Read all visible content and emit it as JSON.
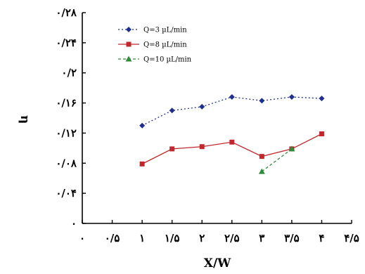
{
  "chart_data": {
    "type": "line",
    "title": "",
    "xlabel": "X/W",
    "ylabel": "η",
    "xlim": [
      0,
      4.5
    ],
    "ylim": [
      0,
      0.28
    ],
    "x_ticks": [
      0,
      0.5,
      1,
      1.5,
      2,
      2.5,
      3,
      3.5,
      4,
      4.5
    ],
    "x_tick_labels": [
      "۰",
      "۰/۵",
      "۱",
      "۱/۵",
      "۲",
      "۲/۵",
      "۳",
      "۳/۵",
      "۴",
      "۴/۵"
    ],
    "y_ticks": [
      0,
      0.04,
      0.08,
      0.12,
      0.16,
      0.2,
      0.24,
      0.28
    ],
    "y_tick_labels": [
      "۰",
      "۰/۰۴",
      "۰/۰۸",
      "۰/۱۲",
      "۰/۱۶",
      "۰/۲",
      "۰/۲۴",
      "۰/۲۸"
    ],
    "grid": false,
    "legend_position": "top-left",
    "series": [
      {
        "name": "Q=3 µL/min",
        "color": "#1f2f8a",
        "marker": "diamond",
        "line": "dotted",
        "x": [
          1,
          1.5,
          2,
          2.5,
          3,
          3.5,
          4
        ],
        "y": [
          0.13,
          0.15,
          0.155,
          0.168,
          0.163,
          0.168,
          0.166
        ]
      },
      {
        "name": "Q=8 µL/min",
        "color": "#c0282d",
        "marker": "square",
        "line": "solid",
        "x": [
          1,
          1.5,
          2,
          2.5,
          3,
          3.5,
          4
        ],
        "y": [
          0.079,
          0.099,
          0.102,
          0.108,
          0.089,
          0.099,
          0.119
        ]
      },
      {
        "name": "Q=10 µL/min",
        "color": "#2e8b3a",
        "marker": "triangle",
        "line": "dashed",
        "x": [
          3,
          3.5
        ],
        "y": [
          0.069,
          0.099
        ]
      }
    ]
  }
}
